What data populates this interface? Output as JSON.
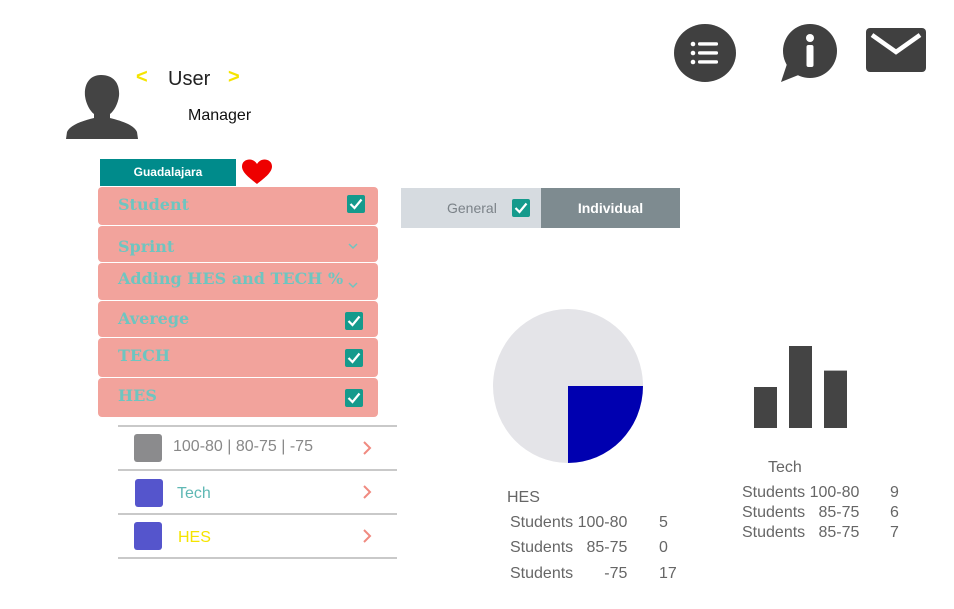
{
  "header": {
    "user_name": "User",
    "prev_arrow": "<",
    "next_arrow": ">",
    "role": "Manager"
  },
  "icons": {
    "menu": "list-icon",
    "info": "info-bubble-icon",
    "mail": "envelope-icon",
    "favorite": "heart-icon",
    "avatar": "user-silhouette-icon"
  },
  "location": {
    "tab_label": "Guadalajara"
  },
  "filters": [
    {
      "label": "Student",
      "control": "checkbox",
      "checked": true
    },
    {
      "label": "Sprint",
      "control": "dropdown"
    },
    {
      "label": "Adding HES and TECH %",
      "control": "dropdown"
    },
    {
      "label": "Averege",
      "control": "checkbox",
      "checked": true
    },
    {
      "label": "TECH",
      "control": "checkbox",
      "checked": true
    },
    {
      "label": "HES",
      "control": "checkbox",
      "checked": true
    }
  ],
  "legend": [
    {
      "label": "100-80 | 80-75  | -75",
      "color": "#8b8b8d",
      "text_color": "#888888"
    },
    {
      "label": "Tech",
      "color": "#5555cc",
      "text_color": "#5fb8b4"
    },
    {
      "label": "HES",
      "color": "#5555cc",
      "text_color": "#f5e400"
    }
  ],
  "toggle": {
    "general_label": "General",
    "general_checked": true,
    "individual_label": "Individual"
  },
  "hes": {
    "title": "HES",
    "rows": [
      {
        "label": "Students 100-80",
        "value": "5"
      },
      {
        "label": "Students   85-75",
        "value": "0"
      },
      {
        "label": "Students       -75",
        "value": "17"
      }
    ]
  },
  "tech": {
    "title": "Tech",
    "rows": [
      {
        "label": "Students 100-80",
        "value": "9"
      },
      {
        "label": "Students   85-75",
        "value": "6"
      },
      {
        "label": "Students   85-75",
        "value": "7"
      }
    ]
  },
  "colors": {
    "teal": "#008b8b",
    "salmon": "#f2a39c",
    "pie_bg": "#e4e4e8",
    "pie_slice": "#0000b0",
    "bars": "#444444",
    "heart": "#ee0000"
  },
  "mini_chart": {
    "pie_fraction": 0.25,
    "bars_relative": [
      0.5,
      1.0,
      0.7
    ]
  }
}
